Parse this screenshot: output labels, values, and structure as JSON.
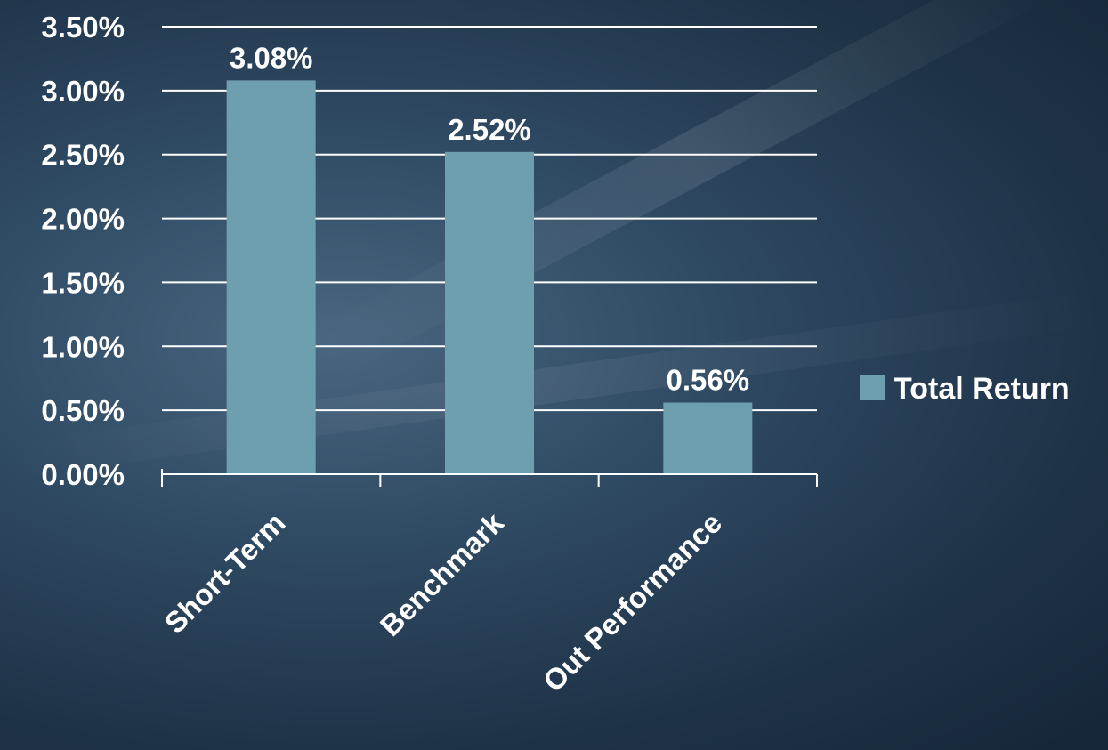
{
  "chart_data": {
    "type": "bar",
    "categories": [
      "Short-Term",
      "Benchmark",
      "Out Performance"
    ],
    "series": [
      {
        "name": "Total Return",
        "values": [
          3.08,
          2.52,
          0.56
        ]
      }
    ],
    "data_labels": [
      "3.08%",
      "2.52%",
      "0.56%"
    ],
    "y_ticks": [
      "0.00%",
      "0.50%",
      "1.00%",
      "1.50%",
      "2.00%",
      "2.50%",
      "3.00%",
      "3.50%"
    ],
    "y_tick_values": [
      0,
      0.5,
      1,
      1.5,
      2,
      2.5,
      3,
      3.5
    ],
    "ylim": [
      0,
      3.5
    ],
    "grid": true,
    "legend_position": "right",
    "title": "",
    "xlabel": "",
    "ylabel": "",
    "colors": {
      "bar": "#6e9fae",
      "grid": "#ffffff",
      "text": "#ffffff"
    }
  }
}
